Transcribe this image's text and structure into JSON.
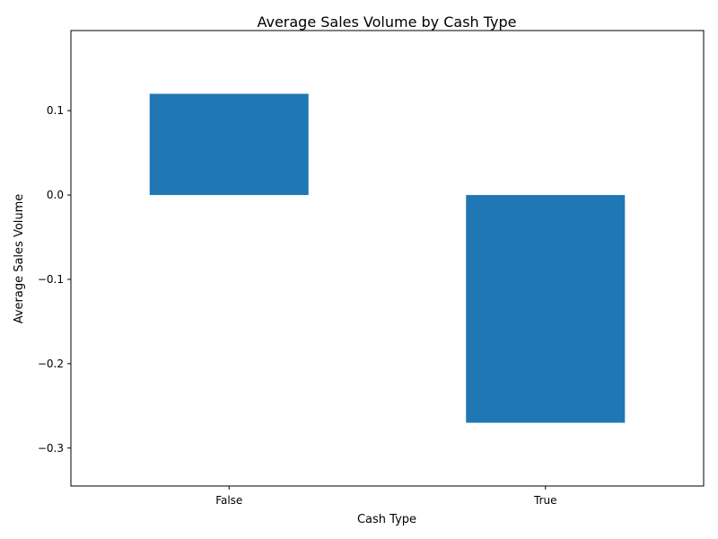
{
  "chart_data": {
    "type": "bar",
    "title": "Average Sales Volume by Cash Type",
    "xlabel": "Cash Type",
    "ylabel": "Average Sales Volume",
    "categories": [
      "False",
      "True"
    ],
    "values": [
      0.12,
      -0.27
    ],
    "ylim": [
      -0.345,
      0.195
    ],
    "yticks": [
      -0.3,
      -0.2,
      -0.1,
      0.0,
      0.1
    ],
    "ytick_labels": [
      "−0.3",
      "−0.2",
      "−0.1",
      "0.0",
      "0.1"
    ],
    "grid": false,
    "legend": "none",
    "bar_color": "#1f77b4"
  }
}
